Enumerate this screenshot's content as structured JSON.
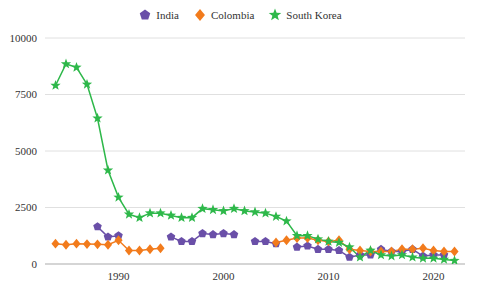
{
  "chart_data": {
    "type": "line",
    "x": [
      1984,
      1985,
      1986,
      1987,
      1988,
      1989,
      1990,
      1991,
      1992,
      1993,
      1994,
      1995,
      1996,
      1997,
      1998,
      1999,
      2000,
      2001,
      2002,
      2003,
      2004,
      2005,
      2006,
      2007,
      2008,
      2009,
      2010,
      2011,
      2012,
      2013,
      2014,
      2015,
      2016,
      2017,
      2018,
      2019,
      2020,
      2021,
      2022
    ],
    "series": [
      {
        "name": "India",
        "color": "#6a4fa8",
        "marker": "pentagon",
        "values": [
          null,
          null,
          null,
          null,
          1650,
          1200,
          1250,
          null,
          null,
          null,
          null,
          1200,
          1000,
          1000,
          1350,
          1300,
          1350,
          1300,
          null,
          1000,
          1000,
          900,
          null,
          750,
          800,
          650,
          650,
          600,
          300,
          400,
          400,
          650,
          550,
          550,
          650,
          350,
          400,
          400,
          null
        ]
      },
      {
        "name": "Colombia",
        "color": "#f27b1c",
        "marker": "diamond",
        "values": [
          900,
          850,
          900,
          880,
          870,
          850,
          1050,
          600,
          600,
          650,
          700,
          null,
          null,
          null,
          null,
          null,
          null,
          null,
          null,
          null,
          null,
          950,
          1050,
          1150,
          1150,
          1050,
          1000,
          1050,
          650,
          600,
          550,
          550,
          550,
          650,
          650,
          700,
          600,
          550,
          550
        ]
      },
      {
        "name": "South Korea",
        "color": "#2eb84a",
        "marker": "star",
        "values": [
          7900,
          8850,
          8700,
          7950,
          6450,
          4150,
          2950,
          2200,
          2050,
          2250,
          2250,
          2150,
          2050,
          2050,
          2450,
          2400,
          2350,
          2450,
          2350,
          2300,
          2250,
          2100,
          1900,
          1250,
          1250,
          1100,
          1000,
          950,
          750,
          300,
          600,
          400,
          350,
          400,
          300,
          250,
          250,
          200,
          150
        ]
      }
    ],
    "xlim": [
      1983,
      2023
    ],
    "xticks": [
      1990,
      2000,
      2010,
      2020
    ],
    "ylim": [
      0,
      10000
    ],
    "yticks": [
      0,
      2500,
      5000,
      7500,
      10000
    ],
    "grid": true,
    "legend": "top"
  }
}
